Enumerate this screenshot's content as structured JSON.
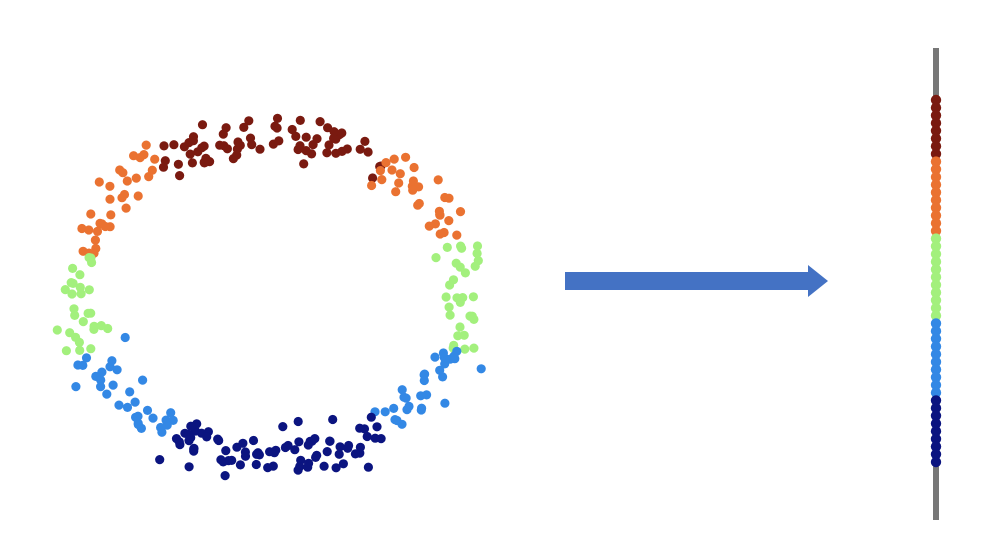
{
  "diagram": {
    "description_free": true,
    "ring": {
      "segments": [
        {
          "name": "top",
          "color": "#7a1a10",
          "angle_start": 55,
          "angle_end": 125,
          "count": 70
        },
        {
          "name": "upper",
          "color": "#ea7231",
          "angle_start": 20,
          "angle_end": 55,
          "count": 30
        },
        {
          "name": "upper-left",
          "color": "#ea7231",
          "angle_start": 125,
          "angle_end": 165,
          "count": 32
        },
        {
          "name": "middle-right",
          "color": "#a3f07d",
          "angle_start": -20,
          "angle_end": 20,
          "count": 30
        },
        {
          "name": "middle-left",
          "color": "#a3f07d",
          "angle_start": 165,
          "angle_end": 200,
          "count": 28
        },
        {
          "name": "lower-right",
          "color": "#3388e5",
          "angle_start": -55,
          "angle_end": -20,
          "count": 30
        },
        {
          "name": "lower-left",
          "color": "#3388e5",
          "angle_start": 200,
          "angle_end": 240,
          "count": 32
        },
        {
          "name": "bottom",
          "color": "#0b1480",
          "angle_start": 240,
          "angle_end": 305,
          "count": 80
        }
      ]
    },
    "arrow": {
      "color": "#4472c4",
      "direction": "right"
    },
    "line": {
      "color": "#777777",
      "bands": [
        {
          "color": "#7a1a10",
          "count": 8
        },
        {
          "color": "#ea7231",
          "count": 10
        },
        {
          "color": "#a3f07d",
          "count": 11
        },
        {
          "color": "#3388e5",
          "count": 10
        },
        {
          "color": "#0b1480",
          "count": 9
        }
      ]
    }
  }
}
